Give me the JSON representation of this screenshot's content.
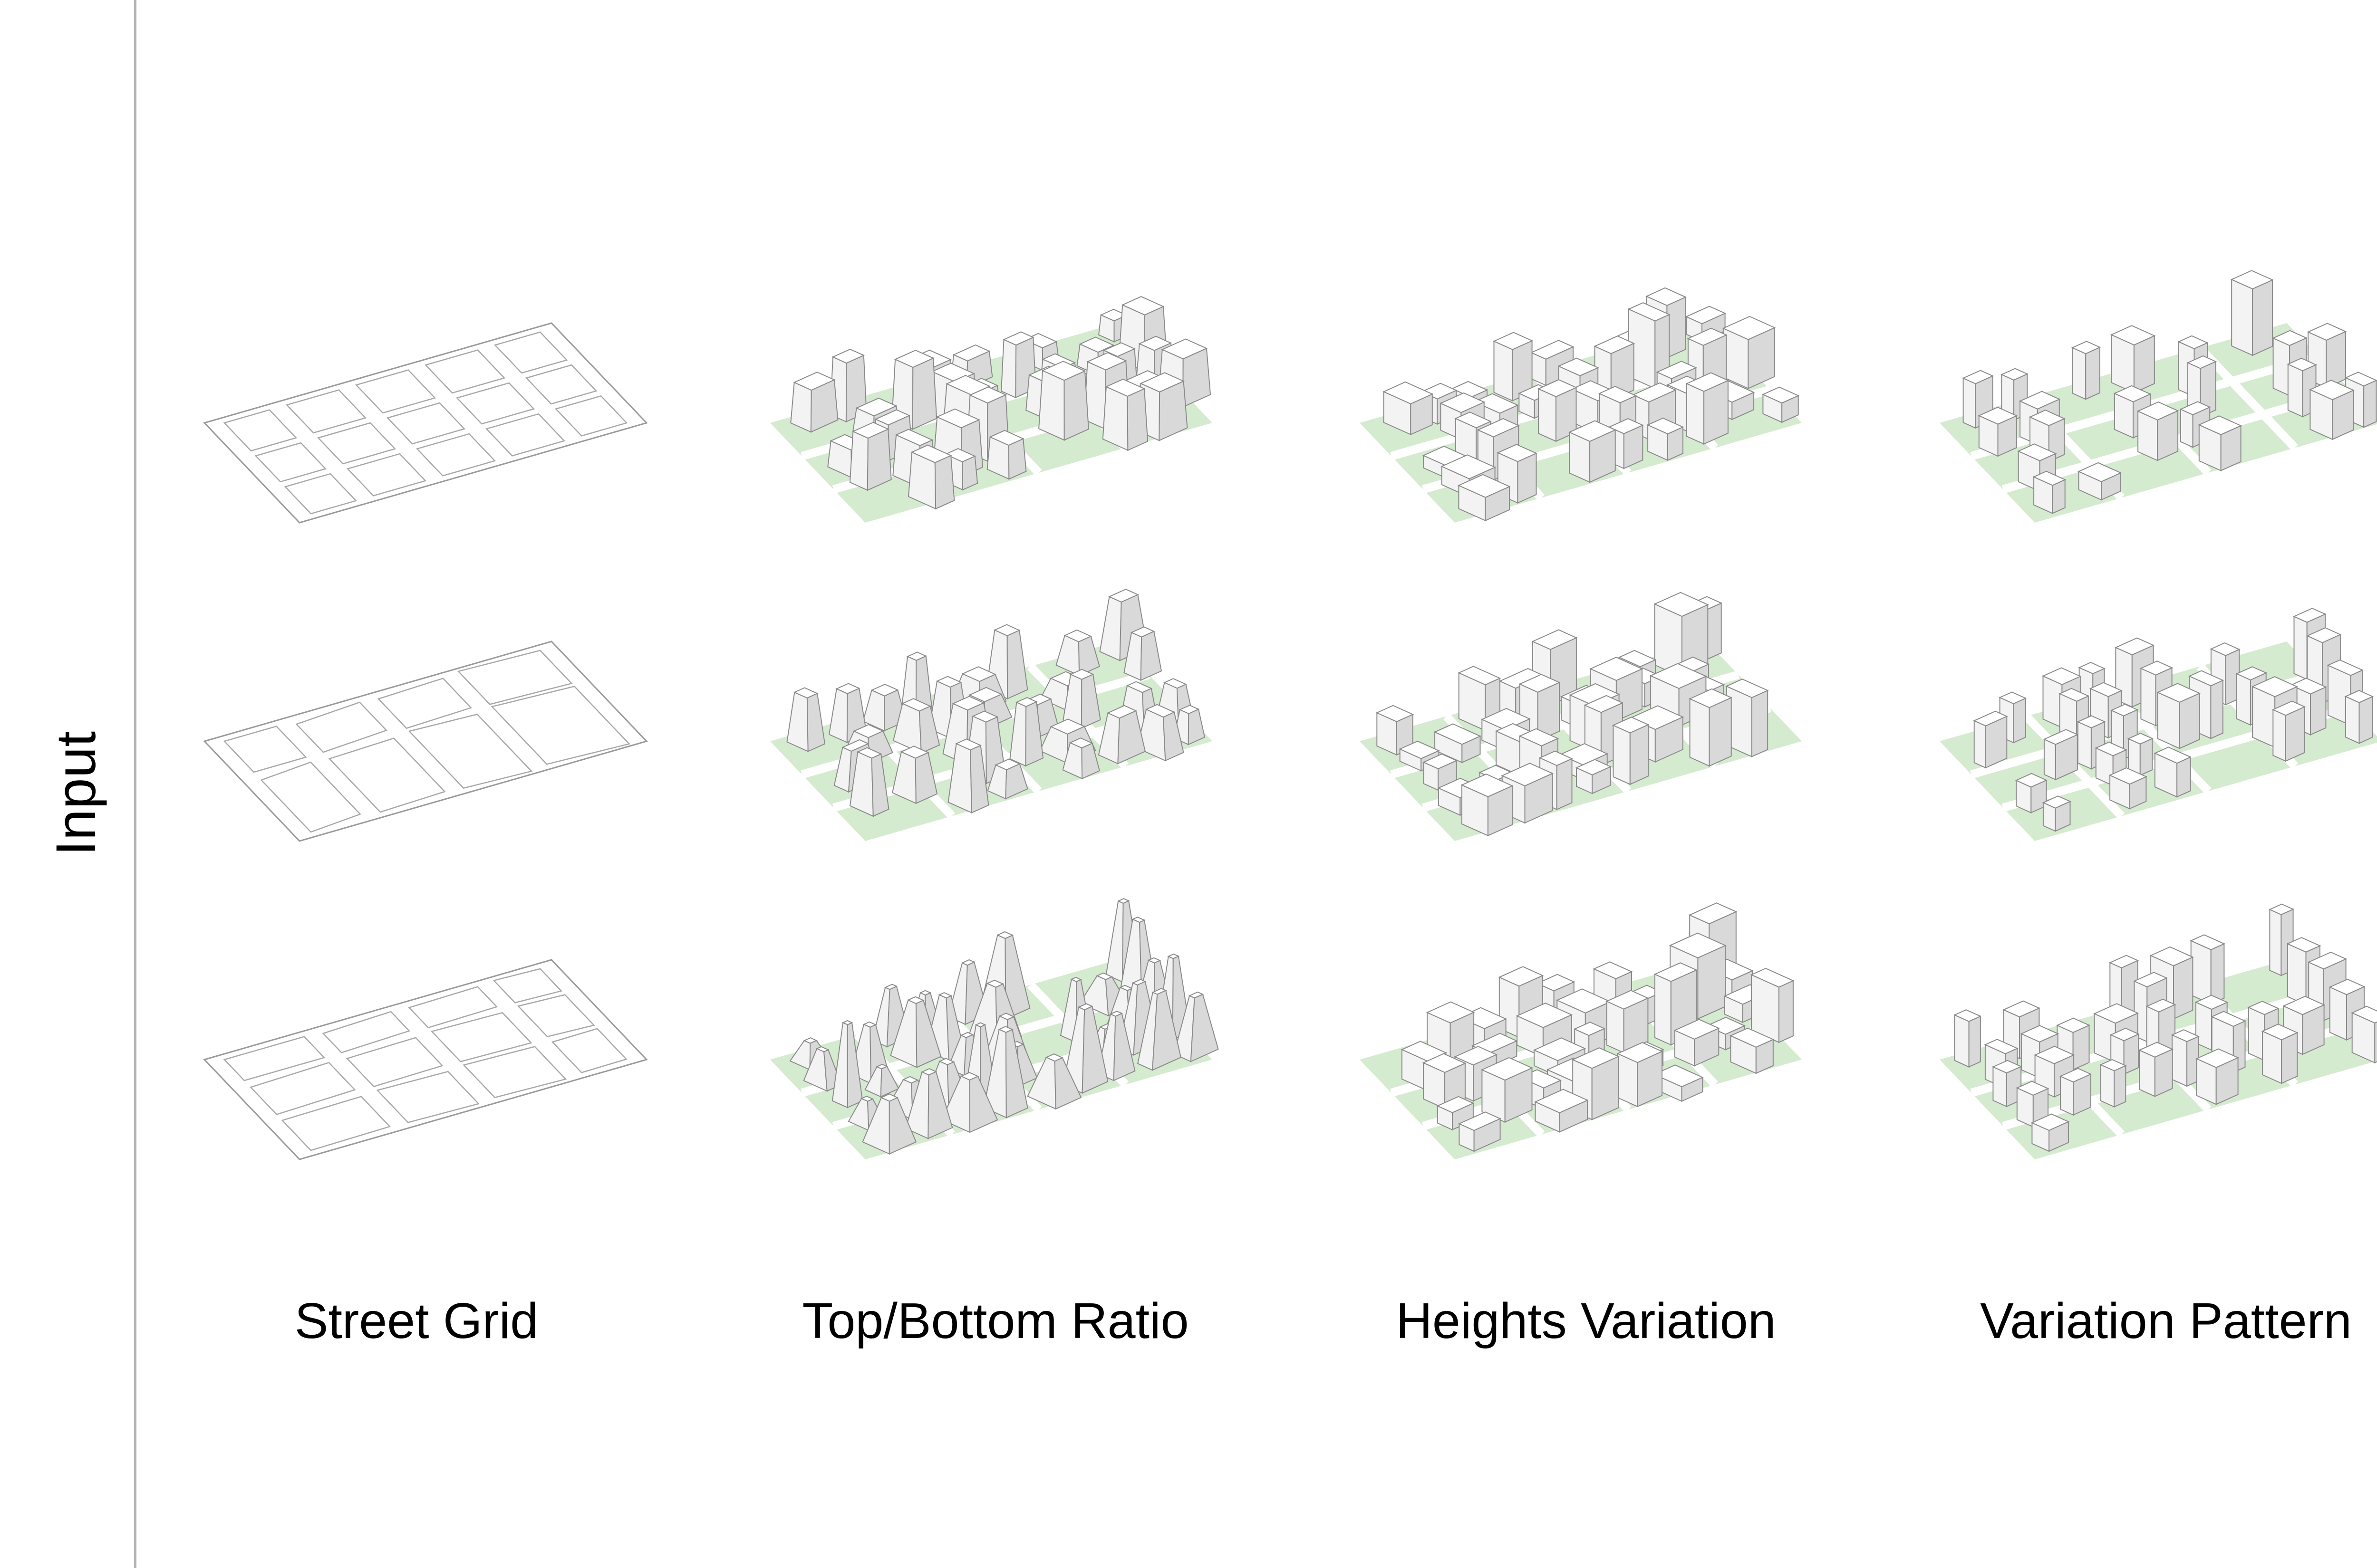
{
  "side_label": "Input",
  "columns": [
    {
      "id": "street-grid",
      "label": "Street Grid"
    },
    {
      "id": "top-bottom-ratio",
      "label": "Top/Bottom Ratio"
    },
    {
      "id": "heights-variation",
      "label": "Heights Variation"
    },
    {
      "id": "variation-pattern",
      "label": "Variation Pattern"
    }
  ],
  "rows": 3,
  "colors": {
    "ground": "#d5ebcf",
    "outline": "#8a8a8a",
    "face_top": "#ffffff",
    "face_left": "#f3f3f3",
    "face_right": "#d9d9d9",
    "rule": "#b3b3b3"
  }
}
